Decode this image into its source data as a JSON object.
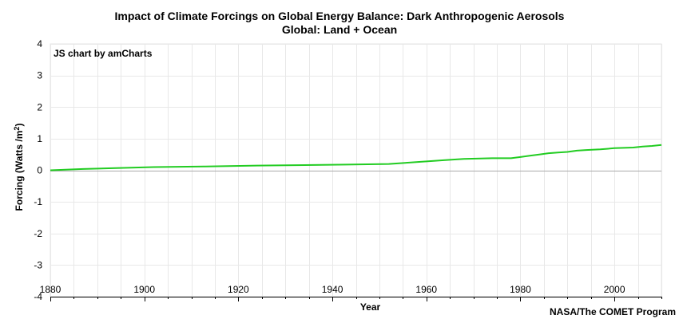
{
  "chart_data": {
    "type": "line",
    "title": "Impact of Climate Forcings on Global Energy Balance: Dark Anthropogenic Aerosols",
    "subtitle": "Global: Land + Ocean",
    "xlabel": "Year",
    "ylabel": "Forcing (Watts /m",
    "ylabel_sup": "2",
    "ylabel_close": ")",
    "xlim": [
      1880,
      2010
    ],
    "ylim": [
      -4,
      4
    ],
    "x_ticks": [
      1880,
      1900,
      1920,
      1940,
      1960,
      1980,
      2000
    ],
    "y_ticks": [
      4,
      3,
      2,
      1,
      0,
      -1,
      -2,
      -3,
      -4
    ],
    "grid": true,
    "line_color": "#22cc22",
    "series": [
      {
        "x": [
          1880,
          1887,
          1894,
          1902,
          1913,
          1924,
          1943,
          1952,
          1956,
          1960,
          1964,
          1968,
          1974,
          1978,
          1980,
          1982,
          1984,
          1986,
          1988,
          1990,
          1992,
          1994,
          1997,
          2000,
          2004,
          2006,
          2008,
          2010
        ],
        "y": [
          0.0,
          0.04,
          0.07,
          0.1,
          0.12,
          0.15,
          0.18,
          0.2,
          0.24,
          0.28,
          0.32,
          0.36,
          0.38,
          0.38,
          0.42,
          0.46,
          0.5,
          0.54,
          0.56,
          0.58,
          0.62,
          0.64,
          0.66,
          0.7,
          0.72,
          0.75,
          0.77,
          0.8
        ]
      }
    ]
  },
  "watermark": "JS chart by amCharts",
  "credit": "NASA/The COMET Program"
}
